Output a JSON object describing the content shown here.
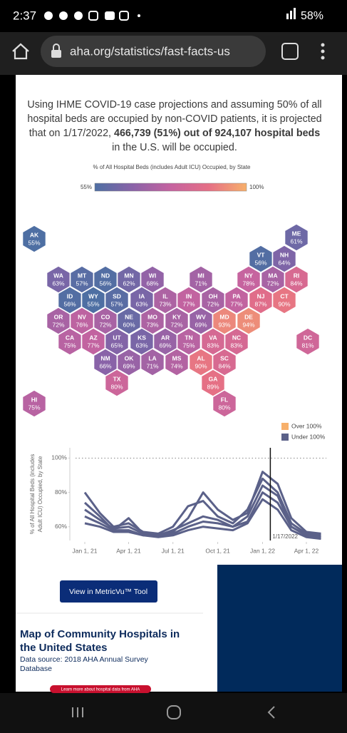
{
  "status_bar": {
    "time": "2:37",
    "battery": "58%"
  },
  "browser": {
    "url": "aha.org/statistics/fast-facts-us"
  },
  "intro": {
    "text_before": "Using IHME COVID-19 case projections and assuming 50% of all hospital beds are occupied by non-COVID patients, it is projected that on 1/17/2022, ",
    "bold": "466,739 (51%) out of 924,107 hospital beds",
    "text_after": " in the U.S. will be occupied."
  },
  "map": {
    "scale_title": "% of All Hospital Beds (includes Adult ICU) Occupied, by State",
    "scale": {
      "min": 55,
      "min_label": "55%",
      "max": 100,
      "max_label": "100%",
      "colors": [
        "#4e6fa3",
        "#8a63a8",
        "#c563a0",
        "#e56f86",
        "#f7b06b"
      ]
    },
    "states": [
      {
        "abbr": "AK",
        "value": 55,
        "label": "55%"
      },
      {
        "abbr": "ME",
        "value": 61,
        "label": "61%"
      },
      {
        "abbr": "VT",
        "value": 56,
        "label": "56%"
      },
      {
        "abbr": "NH",
        "value": 64,
        "label": "64%"
      },
      {
        "abbr": "WA",
        "value": 63,
        "label": "63%"
      },
      {
        "abbr": "MT",
        "value": 57,
        "label": "57%"
      },
      {
        "abbr": "ND",
        "value": 56,
        "label": "56%"
      },
      {
        "abbr": "MN",
        "value": 62,
        "label": "62%"
      },
      {
        "abbr": "WI",
        "value": 68,
        "label": "68%"
      },
      {
        "abbr": "MI",
        "value": 71,
        "label": "71%"
      },
      {
        "abbr": "NY",
        "value": 78,
        "label": "78%"
      },
      {
        "abbr": "MA",
        "value": 72,
        "label": "72%"
      },
      {
        "abbr": "RI",
        "value": 84,
        "label": "84%"
      },
      {
        "abbr": "ID",
        "value": 56,
        "label": "56%"
      },
      {
        "abbr": "WY",
        "value": 55,
        "label": "55%"
      },
      {
        "abbr": "SD",
        "value": 57,
        "label": "57%"
      },
      {
        "abbr": "IA",
        "value": 63,
        "label": "63%"
      },
      {
        "abbr": "IL",
        "value": 73,
        "label": "73%"
      },
      {
        "abbr": "IN",
        "value": 77,
        "label": "77%"
      },
      {
        "abbr": "OH",
        "value": 72,
        "label": "72%"
      },
      {
        "abbr": "PA",
        "value": 77,
        "label": "77%"
      },
      {
        "abbr": "NJ",
        "value": 87,
        "label": "87%"
      },
      {
        "abbr": "CT",
        "value": 90,
        "label": "90%"
      },
      {
        "abbr": "OR",
        "value": 72,
        "label": "72%"
      },
      {
        "abbr": "NV",
        "value": 76,
        "label": "76%"
      },
      {
        "abbr": "CO",
        "value": 72,
        "label": "72%"
      },
      {
        "abbr": "NE",
        "value": 60,
        "label": "60%"
      },
      {
        "abbr": "MO",
        "value": 73,
        "label": "73%"
      },
      {
        "abbr": "KY",
        "value": 72,
        "label": "72%"
      },
      {
        "abbr": "WV",
        "value": 69,
        "label": "69%"
      },
      {
        "abbr": "MD",
        "value": 93,
        "label": "93%"
      },
      {
        "abbr": "DE",
        "value": 94,
        "label": "94%"
      },
      {
        "abbr": "CA",
        "value": 75,
        "label": "75%"
      },
      {
        "abbr": "AZ",
        "value": 77,
        "label": "77%"
      },
      {
        "abbr": "UT",
        "value": 65,
        "label": "65%"
      },
      {
        "abbr": "KS",
        "value": 63,
        "label": "63%"
      },
      {
        "abbr": "AR",
        "value": 69,
        "label": "69%"
      },
      {
        "abbr": "TN",
        "value": 75,
        "label": "75%"
      },
      {
        "abbr": "VA",
        "value": 83,
        "label": "83%"
      },
      {
        "abbr": "NC",
        "value": 83,
        "label": "83%"
      },
      {
        "abbr": "DC",
        "value": 81,
        "label": "81%"
      },
      {
        "abbr": "NM",
        "value": 66,
        "label": "66%"
      },
      {
        "abbr": "OK",
        "value": 69,
        "label": "69%"
      },
      {
        "abbr": "LA",
        "value": 71,
        "label": "71%"
      },
      {
        "abbr": "MS",
        "value": 74,
        "label": "74%"
      },
      {
        "abbr": "AL",
        "value": 90,
        "label": "90%"
      },
      {
        "abbr": "SC",
        "value": 84,
        "label": "84%"
      },
      {
        "abbr": "TX",
        "value": 80,
        "label": "80%"
      },
      {
        "abbr": "GA",
        "value": 89,
        "label": "89%"
      },
      {
        "abbr": "HI",
        "value": 75,
        "label": "75%"
      },
      {
        "abbr": "FL",
        "value": 80,
        "label": "80%"
      }
    ]
  },
  "chart_data": {
    "type": "line",
    "y_label": "% of All Hospital Beds (includes Adult ICU) Occupied, by State",
    "legend": [
      {
        "name": "Over 100%",
        "color": "#f7b06b"
      },
      {
        "name": "Under 100%",
        "color": "#5b6189"
      }
    ],
    "x": [
      "2021-01-01",
      "2021-02-01",
      "2021-03-01",
      "2021-04-01",
      "2021-05-01",
      "2021-06-01",
      "2021-07-01",
      "2021-08-01",
      "2021-09-01",
      "2021-10-01",
      "2021-11-01",
      "2021-12-01",
      "2022-01-01",
      "2022-02-01",
      "2022-03-01",
      "2022-04-01",
      "2022-05-01"
    ],
    "series": [
      {
        "color": "#5b6189",
        "values": [
          80,
          68,
          60,
          62,
          57,
          56,
          60,
          72,
          75,
          66,
          62,
          70,
          88,
          80,
          62,
          56,
          55
        ]
      },
      {
        "color": "#5b6189",
        "values": [
          74,
          66,
          58,
          65,
          56,
          55,
          57,
          65,
          80,
          70,
          64,
          68,
          92,
          85,
          65,
          57,
          56
        ]
      },
      {
        "color": "#5b6189",
        "values": [
          70,
          64,
          59,
          60,
          56,
          55,
          58,
          62,
          66,
          64,
          60,
          66,
          84,
          78,
          60,
          55,
          54
        ]
      },
      {
        "color": "#5b6189",
        "values": [
          66,
          62,
          58,
          58,
          55,
          55,
          56,
          60,
          63,
          62,
          60,
          63,
          80,
          74,
          60,
          55,
          54
        ]
      },
      {
        "color": "#5b6189",
        "values": [
          62,
          60,
          57,
          57,
          55,
          54,
          55,
          58,
          60,
          59,
          58,
          62,
          76,
          70,
          58,
          54,
          53
        ]
      }
    ],
    "xlim": [
      "2020-12-13",
      "2022-05-12"
    ],
    "xticks": [
      {
        "value": "2021-01-01",
        "label": "Jan 1, 21"
      },
      {
        "value": "2021-04-01",
        "label": "Apr 1, 21"
      },
      {
        "value": "2021-07-01",
        "label": "Jul 1, 21"
      },
      {
        "value": "2021-10-01",
        "label": "Oct 1, 21"
      },
      {
        "value": "2022-01-01",
        "label": "Jan 1, 22"
      },
      {
        "value": "2022-04-01",
        "label": "Apr 1, 22"
      }
    ],
    "ylim": [
      52,
      106
    ],
    "yticks": [
      {
        "value": 60,
        "label": "60%"
      },
      {
        "value": 80,
        "label": "80%"
      },
      {
        "value": 100,
        "label": "100%"
      }
    ],
    "reference_y": 100,
    "marker": {
      "x": "2022-01-17",
      "label": "1/17/2022"
    }
  },
  "button": "View in MetricVu™ Tool",
  "section": {
    "title": "Map of Community Hospitals in the United States",
    "source": "Data source: 2018 AHA Annual Survey Database",
    "link": "Learn more about hospital data from AHA"
  }
}
